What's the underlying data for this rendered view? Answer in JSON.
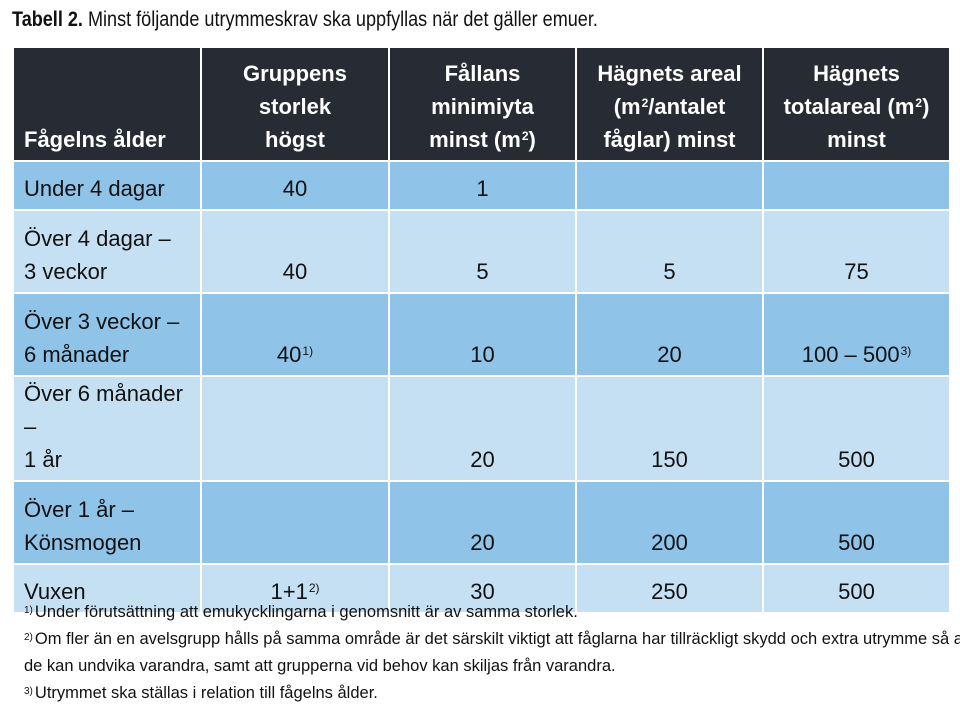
{
  "title": {
    "label": "Tabell 2.",
    "text": "Minst följande utrymmeskrav ska uppfyllas när det gäller emuer."
  },
  "table": {
    "headers": [
      {
        "line1": "Fågelns ålder",
        "line2": "",
        "line3": "",
        "sup": "",
        "after": ""
      },
      {
        "line1": "Gruppens storlek",
        "line2": "högst",
        "line3": "",
        "sup": "",
        "after": ""
      },
      {
        "line1": "Fållans minimiyta",
        "line2": "minst (m",
        "line3": "",
        "sup": "2",
        "after": ")"
      },
      {
        "line1": "Hägnets areal",
        "line2": "(m",
        "line2_sup": "2",
        "line2_after": "/antalet",
        "line3": "fåglar) minst"
      },
      {
        "line1": "Hägnets",
        "line2": "totalareal (m",
        "line2_sup": "2",
        "line2_after": ")",
        "line3": "minst"
      }
    ],
    "rows": [
      {
        "age_line1": "Under 4 dagar",
        "age_line2": "",
        "group": "40",
        "group_sup": "",
        "pen": "1",
        "enclosure": "",
        "total": "",
        "total_sup": ""
      },
      {
        "age_line1": "Över 4 dagar –",
        "age_line2": "3 veckor",
        "group": "40",
        "group_sup": "",
        "pen": "5",
        "enclosure": "5",
        "total": "75",
        "total_sup": ""
      },
      {
        "age_line1": "Över 3 veckor –",
        "age_line2": "6 månader",
        "group": "40",
        "group_sup": "1)",
        "pen": "10",
        "enclosure": "20",
        "total": "100 – 500",
        "total_sup": "3)"
      },
      {
        "age_line1": "Över 6 månader –",
        "age_line2": "1 år",
        "group": "",
        "group_sup": "",
        "pen": "20",
        "enclosure": "150",
        "total": "500",
        "total_sup": ""
      },
      {
        "age_line1": "Över 1 år –",
        "age_line2": "Könsmogen",
        "group": "",
        "group_sup": "",
        "pen": "20",
        "enclosure": "200",
        "total": "500",
        "total_sup": ""
      },
      {
        "age_line1": "Vuxen",
        "age_line2": "",
        "group": "1+1",
        "group_sup": "2)",
        "pen": "30",
        "enclosure": "250",
        "total": "500",
        "total_sup": ""
      }
    ]
  },
  "footnotes": [
    {
      "mark": "1)",
      "text": "Under förutsättning att emukycklingarna i genomsnitt är av samma storlek."
    },
    {
      "mark": "2)",
      "text": "Om fler än en avelsgrupp hålls på samma område är det särskilt viktigt att fåglarna har tillräckligt skydd och extra utrymme så att"
    },
    {
      "mark": "",
      "text": "de kan undvika varandra, samt att grupperna vid behov kan skiljas från varandra."
    },
    {
      "mark": "3)",
      "text": "Utrymmet ska ställas i relation till fågelns ålder."
    }
  ],
  "colors": {
    "header_bg": "#272b33",
    "row_dark": "#8fc3e8",
    "row_light": "#c6e0f3"
  }
}
